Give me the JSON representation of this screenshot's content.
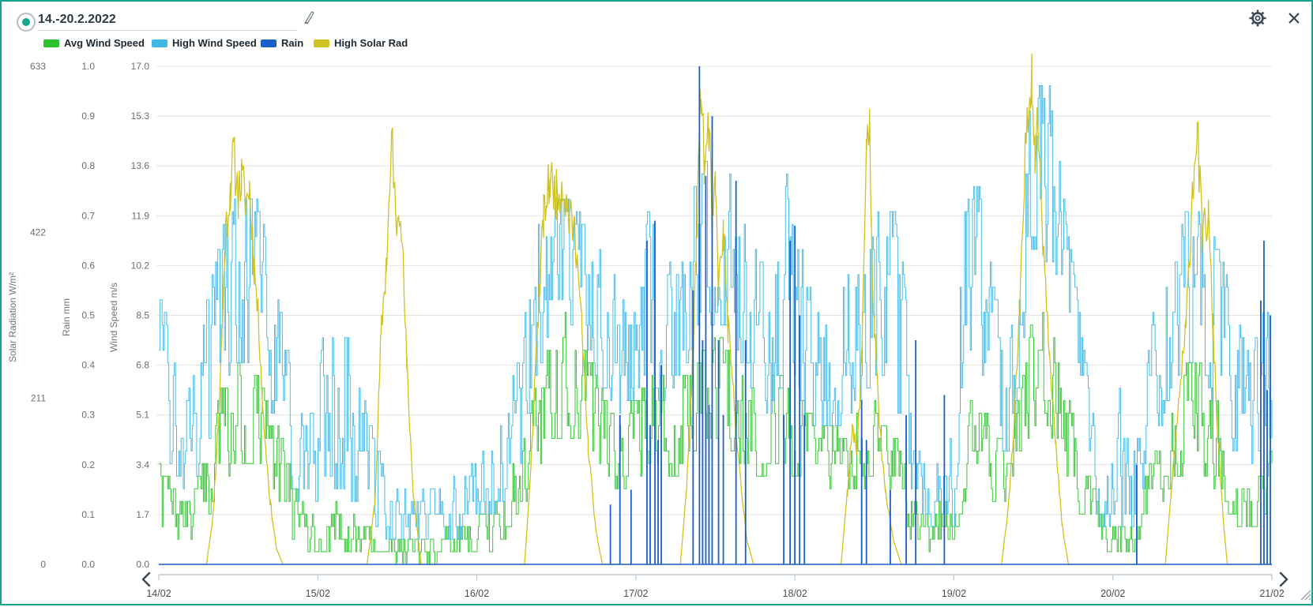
{
  "header": {
    "date_range": "14.-20.2.2022",
    "radio_color": "#18a68d",
    "icon_color": "#3c4b54"
  },
  "chart_data": {
    "type": "line",
    "x_axis": {
      "labels": [
        "14/02",
        "15/02",
        "16/02",
        "17/02",
        "18/02",
        "19/02",
        "20/02",
        "21/02"
      ]
    },
    "axes": {
      "solar": {
        "title": "Solar Radiation W/m²",
        "range": [
          0,
          633
        ],
        "ticks": [
          "0",
          "211",
          "422",
          "633"
        ]
      },
      "rain": {
        "title": "Rain mm",
        "range": [
          0,
          1
        ],
        "ticks": [
          "0.0",
          "0.1",
          "0.2",
          "0.3",
          "0.4",
          "0.5",
          "0.6",
          "0.7",
          "0.8",
          "0.9",
          "1.0"
        ]
      },
      "wind": {
        "title": "Wind Speed m/s",
        "range": [
          0,
          17
        ],
        "ticks": [
          "0.0",
          "1.7",
          "3.4",
          "5.1",
          "6.8",
          "8.5",
          "10.2",
          "11.9",
          "13.6",
          "15.3",
          "17.0"
        ]
      }
    },
    "grid": {
      "color": "#e4e4e4",
      "horizontal_lines": 11
    },
    "series": [
      {
        "name": "Avg Wind Speed",
        "color": "#2ec22e",
        "axis": "wind",
        "render": "noisy-steps",
        "seed": 7,
        "envelope": [
          [
            0.0,
            1.2,
            3.4
          ],
          [
            0.1,
            0.8,
            2.5
          ],
          [
            0.2,
            0.7,
            2.0
          ],
          [
            0.3,
            1.5,
            4.0
          ],
          [
            0.4,
            3.0,
            6.0
          ],
          [
            0.5,
            3.5,
            6.8
          ],
          [
            0.62,
            3.5,
            6.5
          ],
          [
            0.72,
            2.5,
            5.0
          ],
          [
            0.82,
            1.2,
            3.4
          ],
          [
            0.92,
            0.5,
            1.7
          ],
          [
            1.0,
            0.4,
            1.5
          ],
          [
            1.1,
            0.5,
            2.0
          ],
          [
            1.25,
            0.4,
            1.5
          ],
          [
            1.45,
            0.2,
            1.0
          ],
          [
            1.7,
            0.2,
            0.9
          ],
          [
            2.0,
            0.3,
            1.4
          ],
          [
            2.15,
            0.8,
            2.5
          ],
          [
            2.3,
            2.0,
            4.5
          ],
          [
            2.45,
            4.0,
            7.5
          ],
          [
            2.55,
            4.5,
            8.7
          ],
          [
            2.7,
            4.0,
            7.0
          ],
          [
            2.85,
            2.5,
            5.0
          ],
          [
            3.0,
            3.0,
            5.5
          ],
          [
            3.1,
            3.5,
            6.5
          ],
          [
            3.25,
            3.0,
            6.0
          ],
          [
            3.4,
            4.0,
            7.0
          ],
          [
            3.5,
            4.5,
            8.1
          ],
          [
            3.6,
            4.0,
            7.0
          ],
          [
            3.75,
            3.0,
            6.0
          ],
          [
            3.9,
            3.5,
            6.5
          ],
          [
            4.0,
            3.0,
            6.0
          ],
          [
            4.15,
            2.5,
            4.5
          ],
          [
            4.35,
            2.5,
            5.0
          ],
          [
            4.5,
            3.0,
            5.5
          ],
          [
            4.65,
            1.5,
            4.0
          ],
          [
            4.8,
            0.6,
            1.8
          ],
          [
            5.0,
            0.8,
            2.5
          ],
          [
            5.08,
            2.5,
            5.5
          ],
          [
            5.2,
            2.5,
            5.0
          ],
          [
            5.35,
            2.0,
            4.0
          ],
          [
            5.48,
            4.5,
            8.0
          ],
          [
            5.58,
            5.0,
            8.7
          ],
          [
            5.7,
            3.0,
            6.0
          ],
          [
            5.82,
            1.5,
            3.5
          ],
          [
            5.95,
            0.4,
            1.5
          ],
          [
            6.1,
            0.4,
            1.5
          ],
          [
            6.25,
            1.5,
            3.5
          ],
          [
            6.4,
            3.0,
            6.0
          ],
          [
            6.52,
            3.5,
            7.4
          ],
          [
            6.65,
            2.5,
            5.5
          ],
          [
            6.78,
            1.5,
            3.5
          ],
          [
            6.88,
            1.2,
            2.8
          ],
          [
            7.0,
            1.8,
            3.8
          ]
        ]
      },
      {
        "name": "High Wind Speed",
        "color": "#3fb8e8",
        "axis": "wind",
        "render": "noisy-steps",
        "seed": 3,
        "envelope": [
          [
            0.0,
            4.0,
            9.4
          ],
          [
            0.1,
            3.0,
            7.0
          ],
          [
            0.2,
            2.5,
            6.0
          ],
          [
            0.3,
            4.0,
            9.0
          ],
          [
            0.4,
            6.0,
            11.5
          ],
          [
            0.5,
            7.0,
            12.5
          ],
          [
            0.62,
            7.0,
            12.3
          ],
          [
            0.72,
            5.0,
            10.0
          ],
          [
            0.82,
            3.0,
            7.0
          ],
          [
            0.92,
            1.5,
            4.5
          ],
          [
            1.0,
            2.0,
            6.0
          ],
          [
            1.06,
            3.0,
            9.4
          ],
          [
            1.16,
            2.5,
            8.0
          ],
          [
            1.26,
            2.0,
            6.5
          ],
          [
            1.36,
            1.2,
            4.0
          ],
          [
            1.46,
            0.9,
            2.7
          ],
          [
            1.62,
            0.9,
            2.3
          ],
          [
            1.82,
            0.9,
            2.7
          ],
          [
            2.0,
            1.3,
            3.4
          ],
          [
            2.12,
            2.0,
            5.0
          ],
          [
            2.26,
            3.0,
            6.8
          ],
          [
            2.36,
            6.0,
            11.0
          ],
          [
            2.46,
            8.0,
            12.7
          ],
          [
            2.6,
            8.0,
            12.3
          ],
          [
            2.76,
            6.5,
            11.0
          ],
          [
            2.9,
            5.0,
            9.5
          ],
          [
            3.02,
            6.0,
            10.5
          ],
          [
            3.1,
            6.0,
            12.8
          ],
          [
            3.2,
            5.5,
            10.0
          ],
          [
            3.32,
            7.0,
            12.0
          ],
          [
            3.42,
            8.0,
            13.5
          ],
          [
            3.52,
            8.5,
            14.5
          ],
          [
            3.62,
            7.5,
            13.0
          ],
          [
            3.72,
            6.0,
            11.0
          ],
          [
            3.82,
            5.0,
            10.0
          ],
          [
            3.92,
            6.0,
            12.0
          ],
          [
            3.98,
            7.0,
            14.6
          ],
          [
            4.06,
            5.0,
            10.0
          ],
          [
            4.16,
            4.5,
            8.5
          ],
          [
            4.3,
            5.0,
            9.5
          ],
          [
            4.45,
            6.0,
            10.4
          ],
          [
            4.56,
            6.5,
            12.8
          ],
          [
            4.66,
            4.0,
            11.4
          ],
          [
            4.76,
            2.0,
            5.0
          ],
          [
            4.86,
            1.2,
            3.2
          ],
          [
            5.0,
            1.5,
            5.0
          ],
          [
            5.06,
            6.0,
            12.5
          ],
          [
            5.16,
            7.0,
            12.8
          ],
          [
            5.26,
            4.0,
            9.0
          ],
          [
            5.36,
            4.0,
            8.0
          ],
          [
            5.46,
            9.0,
            15.0
          ],
          [
            5.53,
            11.0,
            16.5
          ],
          [
            5.6,
            10.0,
            16.2
          ],
          [
            5.7,
            7.0,
            12.0
          ],
          [
            5.8,
            4.0,
            8.0
          ],
          [
            5.9,
            1.5,
            4.0
          ],
          [
            6.0,
            1.2,
            3.4
          ],
          [
            6.06,
            1.5,
            7.0
          ],
          [
            6.16,
            1.5,
            4.0
          ],
          [
            6.26,
            4.0,
            9.0
          ],
          [
            6.36,
            6.0,
            11.0
          ],
          [
            6.46,
            7.0,
            12.2
          ],
          [
            6.56,
            7.0,
            12.0
          ],
          [
            6.66,
            5.0,
            10.7
          ],
          [
            6.76,
            4.0,
            9.0
          ],
          [
            6.86,
            3.0,
            7.0
          ],
          [
            6.94,
            4.0,
            8.5
          ],
          [
            7.0,
            4.5,
            8.5
          ]
        ]
      },
      {
        "name": "Rain",
        "color": "#1a5fc8",
        "axis": "rain",
        "render": "impulses",
        "baseline": 0,
        "events": [
          [
            2.84,
            0.12
          ],
          [
            2.9,
            0.3
          ],
          [
            2.97,
            0.15
          ],
          [
            3.07,
            0.65
          ],
          [
            3.09,
            0.28
          ],
          [
            3.12,
            0.69
          ],
          [
            3.14,
            0.25
          ],
          [
            3.16,
            0.4
          ],
          [
            3.36,
            0.55
          ],
          [
            3.4,
            1.0
          ],
          [
            3.42,
            0.45
          ],
          [
            3.44,
            0.78
          ],
          [
            3.46,
            0.32
          ],
          [
            3.48,
            0.9
          ],
          [
            3.52,
            0.45
          ],
          [
            3.55,
            0.3
          ],
          [
            3.63,
            0.77
          ],
          [
            3.69,
            0.45
          ],
          [
            3.93,
            0.3
          ],
          [
            3.97,
            0.65
          ],
          [
            4.0,
            0.68
          ],
          [
            4.03,
            0.5
          ],
          [
            4.06,
            0.3
          ],
          [
            4.42,
            0.33
          ],
          [
            4.45,
            0.25
          ],
          [
            4.6,
            0.15
          ],
          [
            4.7,
            0.3
          ],
          [
            4.76,
            0.45
          ],
          [
            4.94,
            0.34
          ],
          [
            6.15,
            0.2
          ],
          [
            6.93,
            0.53
          ],
          [
            6.95,
            0.65
          ],
          [
            6.97,
            0.35
          ],
          [
            6.99,
            0.5
          ]
        ]
      },
      {
        "name": "High Solar Rad",
        "color": "#d1c21d",
        "axis": "solar",
        "render": "jagged-line",
        "seed": 11,
        "points": [
          [
            0.0,
            0
          ],
          [
            0.3,
            0
          ],
          [
            0.34,
            60
          ],
          [
            0.38,
            200
          ],
          [
            0.42,
            420
          ],
          [
            0.45,
            480
          ],
          [
            0.47,
            520
          ],
          [
            0.5,
            470
          ],
          [
            0.52,
            490
          ],
          [
            0.55,
            460
          ],
          [
            0.57,
            480
          ],
          [
            0.6,
            380
          ],
          [
            0.63,
            300
          ],
          [
            0.66,
            180
          ],
          [
            0.7,
            80
          ],
          [
            0.74,
            20
          ],
          [
            0.78,
            0
          ],
          [
            1.31,
            0
          ],
          [
            1.36,
            80
          ],
          [
            1.4,
            300
          ],
          [
            1.43,
            380
          ],
          [
            1.47,
            545
          ],
          [
            1.49,
            430
          ],
          [
            1.52,
            465
          ],
          [
            1.56,
            250
          ],
          [
            1.6,
            90
          ],
          [
            1.65,
            0
          ],
          [
            2.3,
            0
          ],
          [
            2.34,
            120
          ],
          [
            2.38,
            300
          ],
          [
            2.42,
            440
          ],
          [
            2.46,
            490
          ],
          [
            2.5,
            470
          ],
          [
            2.54,
            485
          ],
          [
            2.58,
            440
          ],
          [
            2.62,
            420
          ],
          [
            2.66,
            300
          ],
          [
            2.7,
            150
          ],
          [
            2.75,
            40
          ],
          [
            2.79,
            0
          ],
          [
            3.28,
            0
          ],
          [
            3.32,
            100
          ],
          [
            3.35,
            220
          ],
          [
            3.38,
            400
          ],
          [
            3.41,
            610
          ],
          [
            3.43,
            500
          ],
          [
            3.46,
            557
          ],
          [
            3.48,
            420
          ],
          [
            3.5,
            480
          ],
          [
            3.52,
            350
          ],
          [
            3.55,
            420
          ],
          [
            3.58,
            300
          ],
          [
            3.62,
            200
          ],
          [
            3.66,
            100
          ],
          [
            3.7,
            30
          ],
          [
            3.74,
            0
          ],
          [
            4.29,
            0
          ],
          [
            4.33,
            90
          ],
          [
            4.36,
            180
          ],
          [
            4.39,
            140
          ],
          [
            4.42,
            260
          ],
          [
            4.45,
            540
          ],
          [
            4.47,
            560
          ],
          [
            4.48,
            420
          ],
          [
            4.5,
            300
          ],
          [
            4.53,
            180
          ],
          [
            4.57,
            90
          ],
          [
            4.62,
            30
          ],
          [
            4.67,
            0
          ],
          [
            5.3,
            0
          ],
          [
            5.34,
            70
          ],
          [
            5.38,
            180
          ],
          [
            5.42,
            350
          ],
          [
            5.46,
            580
          ],
          [
            5.49,
            629
          ],
          [
            5.51,
            520
          ],
          [
            5.53,
            555
          ],
          [
            5.56,
            420
          ],
          [
            5.6,
            280
          ],
          [
            5.64,
            150
          ],
          [
            5.68,
            50
          ],
          [
            5.72,
            0
          ],
          [
            6.33,
            0
          ],
          [
            6.37,
            100
          ],
          [
            6.42,
            220
          ],
          [
            6.46,
            300
          ],
          [
            6.5,
            480
          ],
          [
            6.53,
            558
          ],
          [
            6.56,
            420
          ],
          [
            6.6,
            440
          ],
          [
            6.63,
            300
          ],
          [
            6.66,
            160
          ],
          [
            6.7,
            40
          ],
          [
            6.72,
            0
          ],
          [
            7.0,
            0
          ]
        ]
      }
    ],
    "nav": {
      "prev": "previous period",
      "next": "next period"
    }
  }
}
